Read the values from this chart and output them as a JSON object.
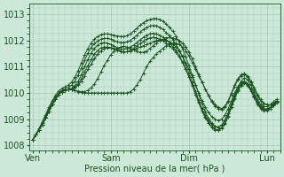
{
  "bg_color": "#cce8d8",
  "grid_color": "#aaccbb",
  "line_color": "#1a5520",
  "marker_color": "#1a5520",
  "xlabel_text": "Pression niveau de la mer( hPa )",
  "xtick_labels": [
    "Ven",
    "Sam",
    "Dim",
    "Lun"
  ],
  "xtick_positions": [
    0,
    24,
    48,
    72
  ],
  "ylim": [
    1007.8,
    1013.4
  ],
  "yticks": [
    1008,
    1009,
    1010,
    1011,
    1012,
    1013
  ],
  "xlim": [
    -1,
    76
  ],
  "series": [
    [
      1008.2,
      1008.4,
      1008.6,
      1008.8,
      1009.05,
      1009.3,
      1009.55,
      1009.75,
      1009.95,
      1010.05,
      1010.1,
      1010.12,
      1010.12,
      1010.1,
      1010.05,
      1010.02,
      1010.0,
      1010.0,
      1010.0,
      1010.0,
      1010.0,
      1010.0,
      1010.0,
      1010.0,
      1010.0,
      1010.0,
      1010.0,
      1010.0,
      1010.0,
      1010.0,
      1010.05,
      1010.15,
      1010.3,
      1010.5,
      1010.75,
      1011.0,
      1011.2,
      1011.35,
      1011.5,
      1011.6,
      1011.7,
      1011.8,
      1011.85,
      1011.9,
      1011.9,
      1011.85,
      1011.75,
      1011.6,
      1011.4,
      1011.15,
      1010.9,
      1010.65,
      1010.4,
      1010.15,
      1009.9,
      1009.7,
      1009.55,
      1009.45,
      1009.4,
      1009.5,
      1009.7,
      1010.0,
      1010.3,
      1010.55,
      1010.7,
      1010.75,
      1010.65,
      1010.45,
      1010.2,
      1009.95,
      1009.75,
      1009.6,
      1009.55,
      1009.55,
      1009.6,
      1009.7
    ],
    [
      1008.2,
      1008.4,
      1008.6,
      1008.8,
      1009.05,
      1009.3,
      1009.55,
      1009.75,
      1009.95,
      1010.05,
      1010.1,
      1010.12,
      1010.12,
      1010.1,
      1010.07,
      1010.05,
      1010.05,
      1010.1,
      1010.2,
      1010.35,
      1010.55,
      1010.8,
      1011.05,
      1011.25,
      1011.45,
      1011.6,
      1011.7,
      1011.75,
      1011.78,
      1011.75,
      1011.7,
      1011.65,
      1011.6,
      1011.55,
      1011.55,
      1011.6,
      1011.7,
      1011.8,
      1011.9,
      1012.0,
      1012.05,
      1012.1,
      1012.12,
      1012.1,
      1012.05,
      1012.0,
      1011.9,
      1011.75,
      1011.55,
      1011.3,
      1011.0,
      1010.7,
      1010.4,
      1010.15,
      1009.9,
      1009.65,
      1009.5,
      1009.4,
      1009.35,
      1009.45,
      1009.65,
      1009.95,
      1010.25,
      1010.5,
      1010.65,
      1010.7,
      1010.6,
      1010.4,
      1010.15,
      1009.9,
      1009.7,
      1009.6,
      1009.55,
      1009.55,
      1009.6,
      1009.7
    ],
    [
      1008.2,
      1008.4,
      1008.6,
      1008.8,
      1009.05,
      1009.3,
      1009.55,
      1009.75,
      1009.95,
      1010.05,
      1010.1,
      1010.12,
      1010.15,
      1010.2,
      1010.3,
      1010.45,
      1010.65,
      1010.9,
      1011.1,
      1011.3,
      1011.48,
      1011.6,
      1011.68,
      1011.72,
      1011.72,
      1011.7,
      1011.65,
      1011.6,
      1011.57,
      1011.57,
      1011.6,
      1011.65,
      1011.7,
      1011.75,
      1011.8,
      1011.85,
      1011.9,
      1011.95,
      1012.0,
      1012.02,
      1012.02,
      1012.0,
      1011.95,
      1011.85,
      1011.75,
      1011.6,
      1011.4,
      1011.15,
      1010.9,
      1010.6,
      1010.3,
      1010.0,
      1009.7,
      1009.45,
      1009.25,
      1009.1,
      1009.0,
      1008.95,
      1009.0,
      1009.15,
      1009.4,
      1009.7,
      1010.0,
      1010.25,
      1010.4,
      1010.45,
      1010.35,
      1010.15,
      1009.9,
      1009.65,
      1009.5,
      1009.4,
      1009.4,
      1009.45,
      1009.55,
      1009.65
    ],
    [
      1008.2,
      1008.4,
      1008.6,
      1008.8,
      1009.05,
      1009.3,
      1009.55,
      1009.75,
      1009.95,
      1010.05,
      1010.1,
      1010.12,
      1010.15,
      1010.22,
      1010.35,
      1010.55,
      1010.8,
      1011.05,
      1011.28,
      1011.48,
      1011.62,
      1011.72,
      1011.75,
      1011.75,
      1011.72,
      1011.68,
      1011.63,
      1011.58,
      1011.55,
      1011.57,
      1011.62,
      1011.7,
      1011.78,
      1011.88,
      1011.97,
      1012.05,
      1012.1,
      1012.12,
      1012.1,
      1012.05,
      1012.0,
      1011.9,
      1011.8,
      1011.68,
      1011.55,
      1011.38,
      1011.15,
      1010.9,
      1010.62,
      1010.32,
      1010.0,
      1009.68,
      1009.4,
      1009.15,
      1008.95,
      1008.8,
      1008.72,
      1008.7,
      1008.78,
      1008.95,
      1009.22,
      1009.55,
      1009.88,
      1010.15,
      1010.35,
      1010.42,
      1010.32,
      1010.12,
      1009.87,
      1009.62,
      1009.45,
      1009.38,
      1009.38,
      1009.45,
      1009.55,
      1009.65
    ],
    [
      1008.2,
      1008.4,
      1008.6,
      1008.8,
      1009.05,
      1009.3,
      1009.55,
      1009.75,
      1009.95,
      1010.05,
      1010.1,
      1010.12,
      1010.17,
      1010.27,
      1010.45,
      1010.7,
      1011.0,
      1011.28,
      1011.52,
      1011.7,
      1011.82,
      1011.9,
      1011.92,
      1011.9,
      1011.85,
      1011.78,
      1011.72,
      1011.68,
      1011.67,
      1011.7,
      1011.75,
      1011.82,
      1011.92,
      1012.02,
      1012.12,
      1012.2,
      1012.25,
      1012.27,
      1012.25,
      1012.2,
      1012.12,
      1012.02,
      1011.9,
      1011.77,
      1011.62,
      1011.42,
      1011.18,
      1010.9,
      1010.6,
      1010.28,
      1009.95,
      1009.62,
      1009.3,
      1009.05,
      1008.85,
      1008.7,
      1008.62,
      1008.6,
      1008.68,
      1008.85,
      1009.12,
      1009.45,
      1009.78,
      1010.08,
      1010.28,
      1010.38,
      1010.28,
      1010.08,
      1009.82,
      1009.57,
      1009.4,
      1009.32,
      1009.32,
      1009.4,
      1009.52,
      1009.62
    ],
    [
      1008.2,
      1008.4,
      1008.6,
      1008.85,
      1009.1,
      1009.38,
      1009.62,
      1009.82,
      1010.0,
      1010.1,
      1010.15,
      1010.2,
      1010.3,
      1010.45,
      1010.68,
      1010.95,
      1011.25,
      1011.52,
      1011.73,
      1011.88,
      1011.98,
      1012.05,
      1012.08,
      1012.08,
      1012.05,
      1012.0,
      1011.95,
      1011.92,
      1011.92,
      1011.95,
      1012.0,
      1012.1,
      1012.2,
      1012.32,
      1012.42,
      1012.5,
      1012.55,
      1012.57,
      1012.55,
      1012.5,
      1012.42,
      1012.3,
      1012.18,
      1012.03,
      1011.85,
      1011.63,
      1011.37,
      1011.07,
      1010.75,
      1010.42,
      1010.07,
      1009.72,
      1009.38,
      1009.1,
      1008.87,
      1008.7,
      1008.6,
      1008.57,
      1008.65,
      1008.82,
      1009.1,
      1009.45,
      1009.8,
      1010.1,
      1010.32,
      1010.43,
      1010.35,
      1010.15,
      1009.88,
      1009.62,
      1009.45,
      1009.37,
      1009.37,
      1009.45,
      1009.57,
      1009.67
    ],
    [
      1008.2,
      1008.42,
      1008.65,
      1008.9,
      1009.17,
      1009.45,
      1009.7,
      1009.9,
      1010.07,
      1010.17,
      1010.23,
      1010.3,
      1010.42,
      1010.6,
      1010.85,
      1011.15,
      1011.45,
      1011.7,
      1011.9,
      1012.05,
      1012.15,
      1012.22,
      1012.25,
      1012.25,
      1012.23,
      1012.2,
      1012.17,
      1012.15,
      1012.15,
      1012.18,
      1012.25,
      1012.35,
      1012.47,
      1012.58,
      1012.68,
      1012.75,
      1012.8,
      1012.83,
      1012.83,
      1012.8,
      1012.73,
      1012.62,
      1012.5,
      1012.35,
      1012.17,
      1011.95,
      1011.68,
      1011.37,
      1011.03,
      1010.68,
      1010.32,
      1009.95,
      1009.6,
      1009.28,
      1009.03,
      1008.85,
      1008.73,
      1008.7,
      1008.77,
      1008.95,
      1009.23,
      1009.58,
      1009.93,
      1010.23,
      1010.45,
      1010.57,
      1010.5,
      1010.3,
      1010.02,
      1009.75,
      1009.57,
      1009.48,
      1009.48,
      1009.55,
      1009.67,
      1009.77
    ]
  ]
}
